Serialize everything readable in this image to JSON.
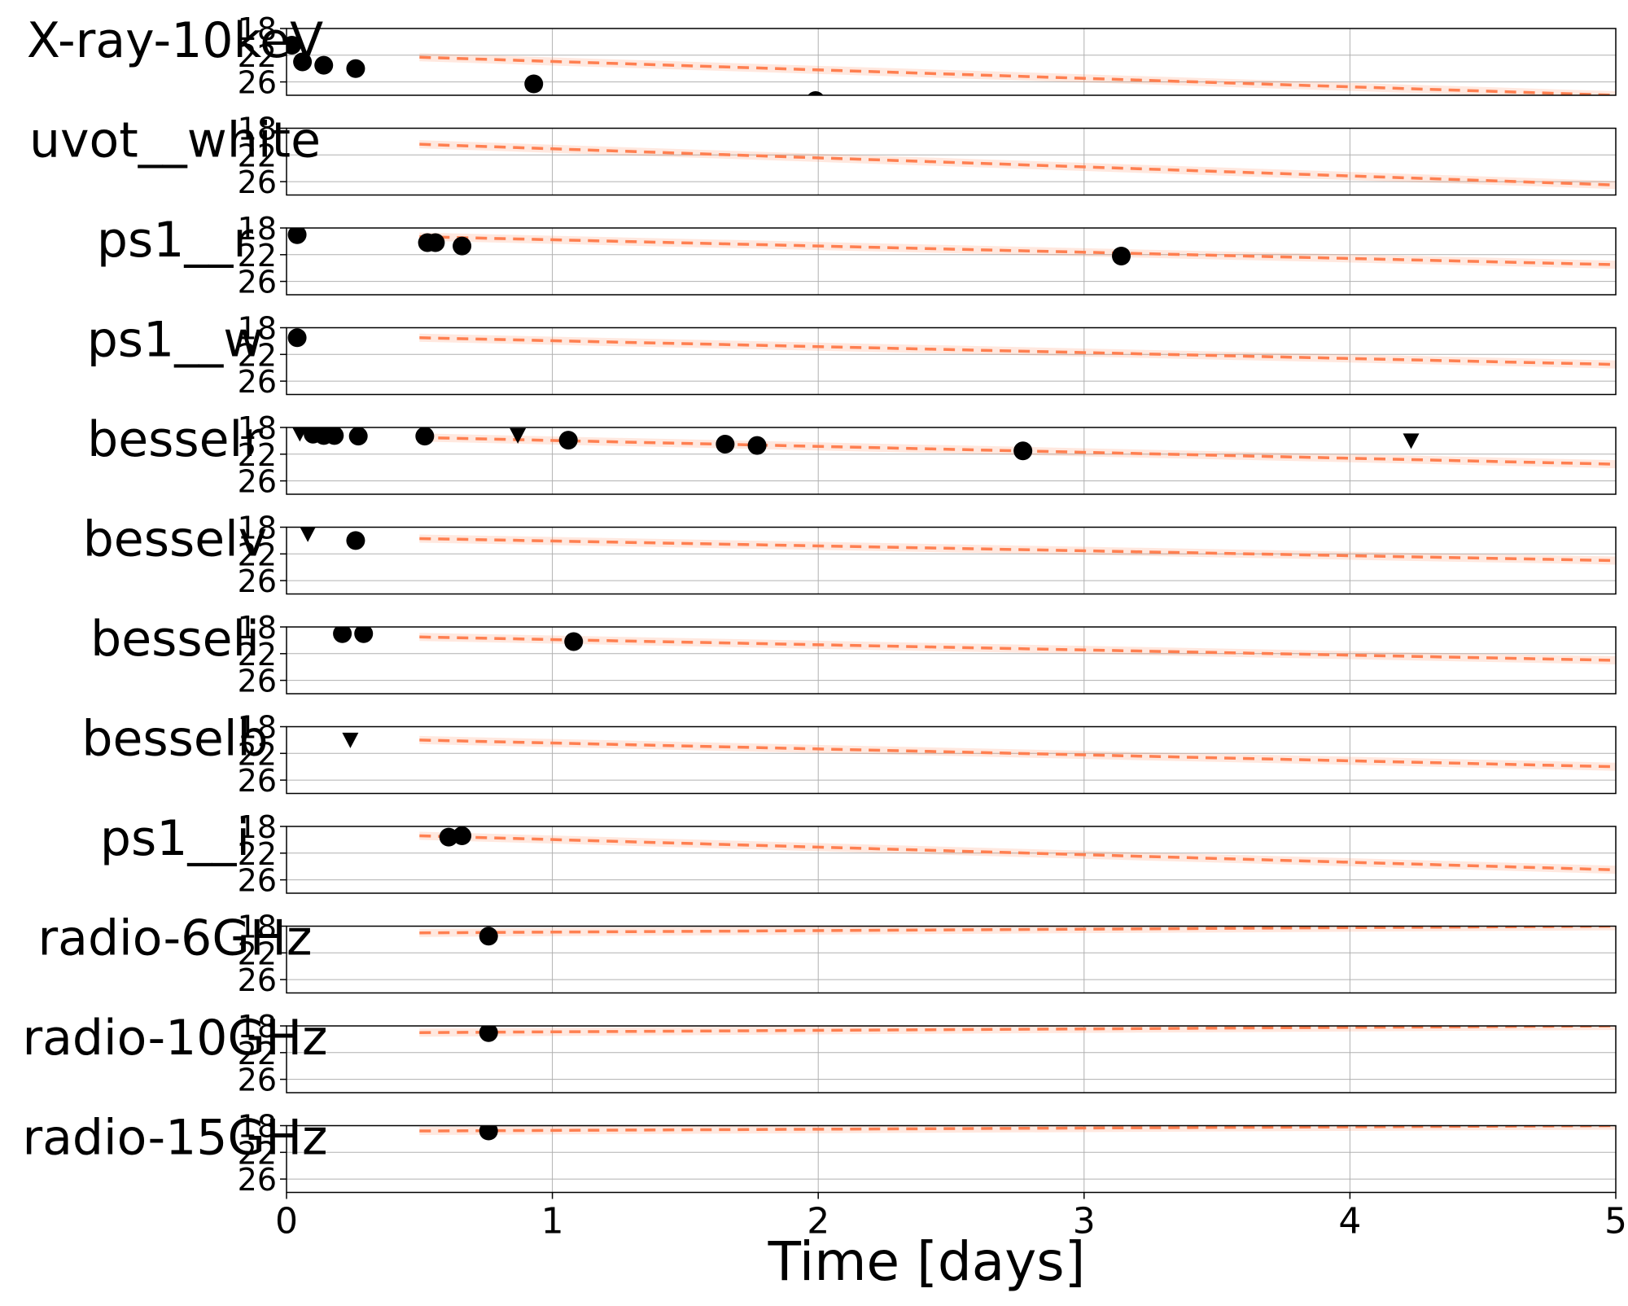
{
  "chart_data": {
    "type": "scatter",
    "xlabel": "Time [days]",
    "xlim": [
      0,
      5
    ],
    "x_ticks": [
      "0",
      "1",
      "2",
      "3",
      "4",
      "5"
    ],
    "y_ticks": [
      "18",
      "22",
      "26"
    ],
    "ylim_inverted": [
      18,
      28
    ],
    "grid": true,
    "model_color": "#ff7f50",
    "marker_color": "#000000",
    "panels": [
      {
        "name": "X-ray-10keV",
        "model": [
          [
            0.5,
            22.3
          ],
          [
            5.0,
            28.0
          ]
        ],
        "detections": [
          [
            0.02,
            20.5
          ],
          [
            0.06,
            23.0
          ],
          [
            0.14,
            23.5
          ],
          [
            0.26,
            24.0
          ],
          [
            0.93,
            26.3
          ],
          [
            1.99,
            28.8
          ]
        ],
        "upper_limits": []
      },
      {
        "name": "uvot__white",
        "model": [
          [
            0.5,
            20.4
          ],
          [
            5.0,
            26.5
          ]
        ],
        "detections": [],
        "upper_limits": []
      },
      {
        "name": "ps1__r",
        "model": [
          [
            0.5,
            19.3
          ],
          [
            5.0,
            23.5
          ]
        ],
        "detections": [
          [
            0.04,
            19.0
          ],
          [
            0.53,
            20.2
          ],
          [
            0.56,
            20.2
          ],
          [
            0.66,
            20.7
          ],
          [
            3.14,
            22.2
          ]
        ],
        "upper_limits": []
      },
      {
        "name": "ps1__w",
        "model": [
          [
            0.5,
            19.5
          ],
          [
            5.0,
            23.5
          ]
        ],
        "detections": [
          [
            0.04,
            19.5
          ]
        ],
        "upper_limits": []
      },
      {
        "name": "besselr",
        "model": [
          [
            0.5,
            19.5
          ],
          [
            5.0,
            23.5
          ]
        ],
        "detections": [
          [
            0.1,
            19.0
          ],
          [
            0.14,
            19.2
          ],
          [
            0.18,
            19.2
          ],
          [
            0.27,
            19.3
          ],
          [
            0.52,
            19.3
          ],
          [
            1.06,
            19.9
          ],
          [
            1.65,
            20.5
          ],
          [
            1.77,
            20.7
          ],
          [
            2.77,
            21.5
          ]
        ],
        "upper_limits": [
          [
            0.05,
            18.9
          ],
          [
            0.87,
            19.2
          ],
          [
            4.23,
            20.0
          ]
        ]
      },
      {
        "name": "besselv",
        "model": [
          [
            0.5,
            19.7
          ],
          [
            5.0,
            23.0
          ]
        ],
        "detections": [
          [
            0.26,
            20.0
          ]
        ],
        "upper_limits": [
          [
            0.08,
            19.0
          ]
        ]
      },
      {
        "name": "besseli",
        "model": [
          [
            0.5,
            19.5
          ],
          [
            5.0,
            23.0
          ]
        ],
        "detections": [
          [
            0.21,
            19.0
          ],
          [
            0.29,
            19.0
          ],
          [
            1.08,
            20.2
          ]
        ],
        "upper_limits": []
      },
      {
        "name": "besselb",
        "model": [
          [
            0.5,
            20.0
          ],
          [
            5.0,
            24.0
          ]
        ],
        "detections": [],
        "upper_limits": [
          [
            0.24,
            20.0
          ]
        ]
      },
      {
        "name": "ps1__i",
        "model": [
          [
            0.5,
            19.4
          ],
          [
            5.0,
            24.5
          ]
        ],
        "detections": [
          [
            0.61,
            19.6
          ],
          [
            0.66,
            19.4
          ]
        ],
        "upper_limits": []
      },
      {
        "name": "radio-6GHz",
        "model": [
          [
            0.5,
            19.0
          ],
          [
            5.0,
            18.0
          ]
        ],
        "detections": [
          [
            0.76,
            19.5
          ]
        ],
        "upper_limits": []
      },
      {
        "name": "radio-10GHz",
        "model": [
          [
            0.5,
            19.0
          ],
          [
            5.0,
            18.0
          ]
        ],
        "detections": [
          [
            0.76,
            19.0
          ]
        ],
        "upper_limits": []
      },
      {
        "name": "radio-15GHz",
        "model": [
          [
            0.5,
            18.8
          ],
          [
            5.0,
            18.0
          ]
        ],
        "detections": [
          [
            0.76,
            18.8
          ]
        ],
        "upper_limits": []
      }
    ]
  }
}
